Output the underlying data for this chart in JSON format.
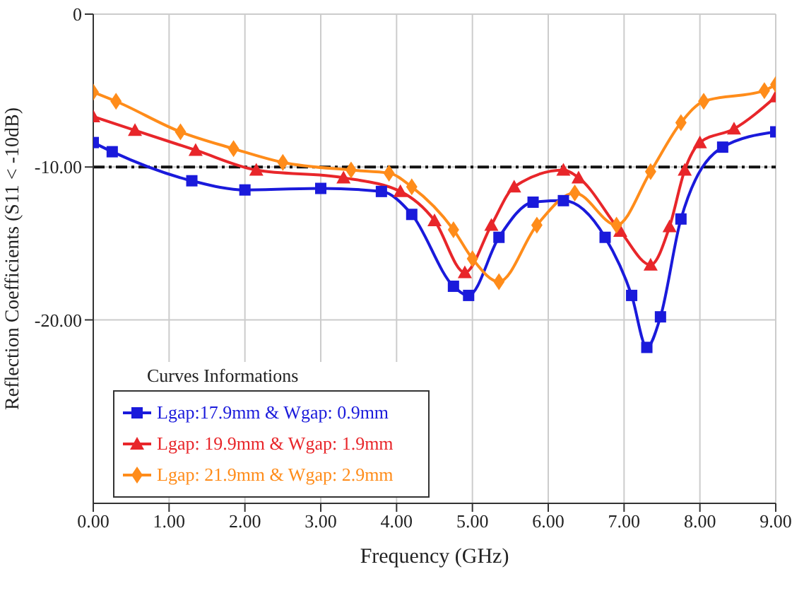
{
  "chart_data": {
    "type": "line",
    "xlabel": "Frequency (GHz)",
    "ylabel": "Reflection Coefficients (S11 < -10dB)",
    "legend_title": "Curves Informations",
    "xlim": [
      0,
      9
    ],
    "xticks": [
      {
        "value": 0,
        "label": "0.00"
      },
      {
        "value": 1,
        "label": "1.00"
      },
      {
        "value": 2,
        "label": "2.00"
      },
      {
        "value": 3,
        "label": "3.00"
      },
      {
        "value": 4,
        "label": "4.00"
      },
      {
        "value": 5,
        "label": "5.00"
      },
      {
        "value": 6,
        "label": "6.00"
      },
      {
        "value": 7,
        "label": "7.00"
      },
      {
        "value": 8,
        "label": "8.00"
      },
      {
        "value": 9,
        "label": "9.00"
      }
    ],
    "ylim": [
      -32,
      0
    ],
    "yticks": [
      0,
      {
        "value": -10,
        "label": "-10.00"
      },
      {
        "value": -20,
        "label": "-20.00"
      }
    ],
    "grid": true,
    "legend": "bottom left",
    "line_style": "solid",
    "ref_lines": [
      {
        "axis": "y",
        "value": -10,
        "color": "#111111",
        "line_style": "dashdot"
      }
    ],
    "series": [
      {
        "name": "Lgap:17.9mm & Wgap: 0.9mm",
        "color": "#1a1adb",
        "marker": "square",
        "x": [
          0,
          0.25,
          1.3,
          2,
          3,
          3.8,
          4.2,
          4.75,
          4.95,
          5.35,
          5.8,
          6.2,
          6.75,
          7.1,
          7.3,
          7.48,
          7.75,
          8.3,
          9
        ],
        "values": [
          -8.4,
          -9,
          -10.9,
          -11.5,
          -11.4,
          -11.6,
          -13.1,
          -17.8,
          -18.4,
          -14.6,
          -12.3,
          -12.2,
          -14.6,
          -18.4,
          -21.8,
          -19.8,
          -13.4,
          -8.7,
          -7.7
        ]
      },
      {
        "name": "Lgap: 19.9mm & Wgap: 1.9mm",
        "color": "#e8262a",
        "marker": "triangle",
        "x": [
          0,
          0.55,
          1.35,
          2.15,
          3.3,
          4.05,
          4.5,
          4.9,
          5.25,
          5.55,
          6.2,
          6.4,
          6.95,
          7.35,
          7.6,
          7.8,
          8,
          8.45,
          9
        ],
        "values": [
          -6.7,
          -7.6,
          -8.9,
          -10.2,
          -10.7,
          -11.6,
          -13.5,
          -16.9,
          -13.8,
          -11.3,
          -10.2,
          -10.7,
          -14.2,
          -16.4,
          -13.9,
          -10.2,
          -8.4,
          -7.5,
          -5.4
        ]
      },
      {
        "name": "Lgap: 21.9mm & Wgap: 2.9mm",
        "color": "#ff8c1a",
        "marker": "diamond",
        "x": [
          0,
          0.3,
          1.15,
          1.85,
          2.5,
          3.4,
          3.9,
          4.2,
          4.75,
          5,
          5.35,
          5.85,
          6.35,
          6.9,
          7.35,
          7.75,
          8.05,
          8.85,
          9
        ],
        "values": [
          -5.1,
          -5.7,
          -7.7,
          -8.8,
          -9.7,
          -10.2,
          -10.4,
          -11.3,
          -14.1,
          -16,
          -17.5,
          -13.8,
          -11.7,
          -13.8,
          -10.3,
          -7.1,
          -5.7,
          -5,
          -4.6
        ]
      }
    ]
  }
}
